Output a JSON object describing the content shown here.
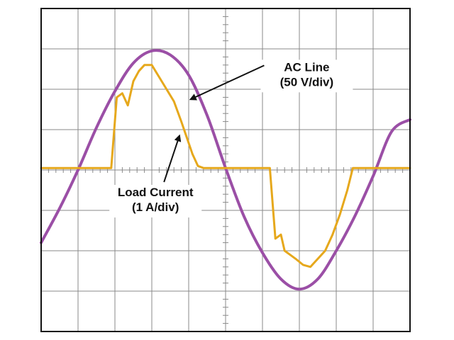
{
  "chart_data": {
    "type": "line",
    "title": "",
    "xlabel": "",
    "ylabel": "",
    "grid": true,
    "divisions": {
      "x": 10,
      "y": 8
    },
    "xlim": [
      0,
      10
    ],
    "ylim": [
      -4,
      4
    ],
    "colors": {
      "ac_line": "#9b4fa6",
      "load_current": "#e6a81c",
      "grid": "#8a8a8a",
      "frame": "#111111"
    },
    "series": [
      {
        "key": "ac_line",
        "x": [
          0,
          0.5,
          1.0,
          1.5,
          2.0,
          2.5,
          3.0,
          3.5,
          4.0,
          4.5,
          5.0,
          5.5,
          6.0,
          6.5,
          7.0,
          7.5,
          8.0,
          8.5,
          9.0,
          9.5,
          10.0
        ],
        "values": [
          -1.8,
          -0.95,
          0.0,
          1.05,
          1.95,
          2.65,
          2.95,
          2.85,
          2.35,
          1.35,
          0.05,
          -1.15,
          -2.05,
          -2.7,
          -2.95,
          -2.7,
          -2.0,
          -1.15,
          -0.15,
          0.95,
          1.25
        ]
      },
      {
        "key": "load_current",
        "x": [
          0,
          1.9,
          2.05,
          2.2,
          2.35,
          2.5,
          2.65,
          2.8,
          3.0,
          3.2,
          3.4,
          3.6,
          3.8,
          3.95,
          4.1,
          4.25,
          4.4,
          6.0,
          6.2,
          6.35,
          6.5,
          6.6,
          6.75,
          6.9,
          7.1,
          7.3,
          7.5,
          7.7,
          7.9,
          8.1,
          8.3,
          8.45,
          8.6,
          10.0
        ],
        "values": [
          0.05,
          0.05,
          1.8,
          1.9,
          1.6,
          2.2,
          2.45,
          2.6,
          2.6,
          2.3,
          2.0,
          1.7,
          1.2,
          0.8,
          0.4,
          0.1,
          0.05,
          0.05,
          0.05,
          -1.7,
          -1.6,
          -2.0,
          -2.1,
          -2.2,
          -2.35,
          -2.4,
          -2.2,
          -2.0,
          -1.6,
          -1.1,
          -0.5,
          0.05,
          0.05,
          0.05
        ]
      }
    ],
    "annotations": [
      {
        "key": "ac",
        "lines": [
          "AC Line",
          "(50 V/div)"
        ],
        "x": 7.2,
        "y": 2.45,
        "anchor": "middle",
        "arrow_to": [
          4.05,
          1.75
        ]
      },
      {
        "key": "load",
        "lines": [
          "Load Current",
          "(1 A/div)"
        ],
        "x": 3.1,
        "y": -0.65,
        "anchor": "middle",
        "arrow_to": [
          3.75,
          0.85
        ]
      }
    ]
  }
}
